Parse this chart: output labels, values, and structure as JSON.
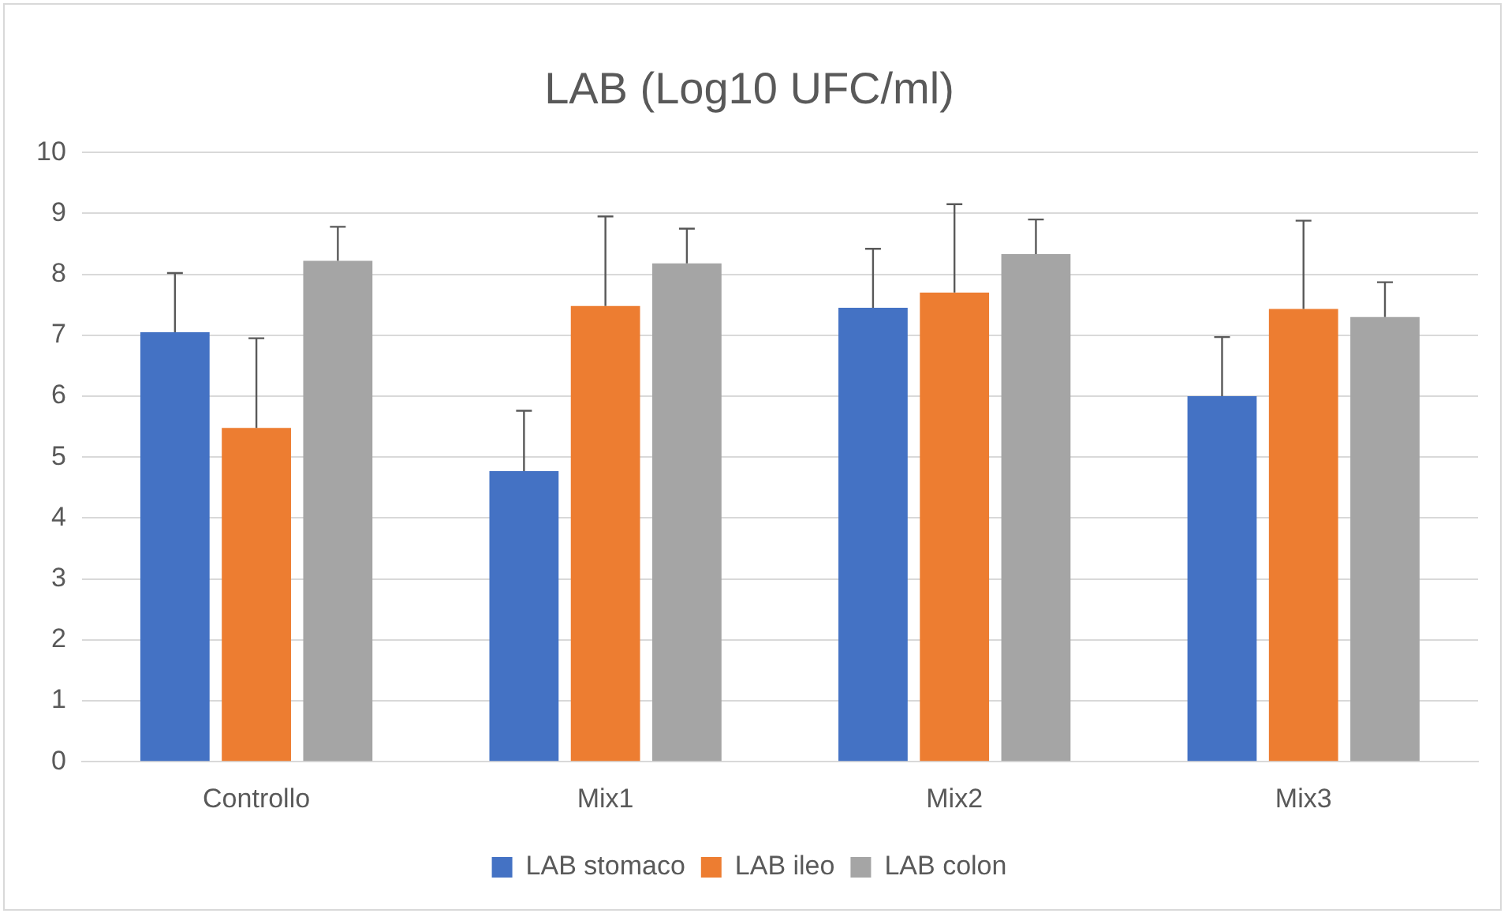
{
  "chart_data": {
    "type": "bar",
    "title": "LAB (Log10 UFC/ml)",
    "categories": [
      "Controllo",
      "Mix1",
      "Mix2",
      "Mix3"
    ],
    "series": [
      {
        "name": "LAB stomaco",
        "color": "#4472c4",
        "values": [
          7.05,
          4.77,
          7.45,
          6.0
        ],
        "errors": [
          [
            7.05,
            8.02
          ],
          [
            4.77,
            5.76
          ],
          [
            7.45,
            8.42
          ],
          [
            6.0,
            6.97
          ]
        ]
      },
      {
        "name": "LAB ileo",
        "color": "#ed7d31",
        "values": [
          5.48,
          7.48,
          7.7,
          7.43
        ],
        "errors": [
          [
            5.48,
            6.95
          ],
          [
            7.48,
            8.95
          ],
          [
            7.7,
            9.15
          ],
          [
            7.43,
            8.88
          ]
        ]
      },
      {
        "name": "LAB colon",
        "color": "#a5a5a5",
        "values": [
          8.22,
          8.18,
          8.33,
          7.3
        ],
        "errors": [
          [
            8.22,
            8.78
          ],
          [
            8.18,
            8.75
          ],
          [
            8.33,
            8.9
          ],
          [
            7.3,
            7.87
          ]
        ]
      }
    ],
    "ylim": [
      0,
      10
    ],
    "yticks": [
      0,
      1,
      2,
      3,
      4,
      5,
      6,
      7,
      8,
      9,
      10
    ],
    "grid": "y",
    "legend": "bottom"
  }
}
